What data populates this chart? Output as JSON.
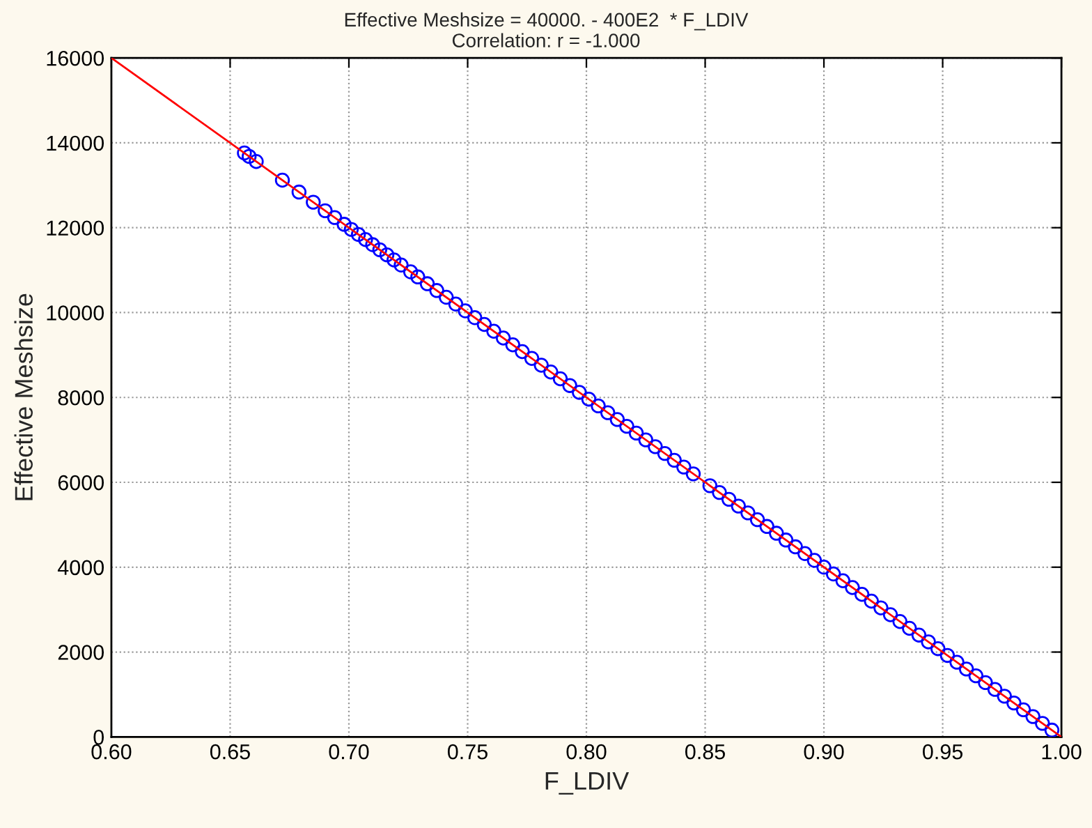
{
  "chart_data": {
    "type": "scatter",
    "title": "Effective Meshsize = 40000. - 400E2  * F_LDIV",
    "subtitle": "Correlation: r = -1.000",
    "xlabel": "F_LDIV",
    "ylabel": "Effective Meshsize",
    "xlim": [
      0.6,
      1.0
    ],
    "ylim": [
      0,
      16000
    ],
    "xticks": [
      {
        "value": 0.6,
        "label": "0.60"
      },
      {
        "value": 0.65,
        "label": "0.65"
      },
      {
        "value": 0.7,
        "label": "0.70"
      },
      {
        "value": 0.75,
        "label": "0.75"
      },
      {
        "value": 0.8,
        "label": "0.80"
      },
      {
        "value": 0.85,
        "label": "0.85"
      },
      {
        "value": 0.9,
        "label": "0.90"
      },
      {
        "value": 0.95,
        "label": "0.95"
      },
      {
        "value": 1.0,
        "label": "1.00"
      }
    ],
    "yticks": [
      0,
      2000,
      4000,
      6000,
      8000,
      10000,
      12000,
      14000,
      16000
    ],
    "grid": true,
    "series": [
      {
        "color": "#0000ff",
        "marker": "circle",
        "x": [
          0.656,
          0.658,
          0.661,
          0.672,
          0.679,
          0.685,
          0.69,
          0.694,
          0.698,
          0.701,
          0.704,
          0.707,
          0.71,
          0.713,
          0.716,
          0.719,
          0.722,
          0.726,
          0.729,
          0.733,
          0.737,
          0.741,
          0.745,
          0.749,
          0.753,
          0.757,
          0.761,
          0.765,
          0.769,
          0.773,
          0.777,
          0.781,
          0.785,
          0.789,
          0.793,
          0.797,
          0.801,
          0.805,
          0.809,
          0.813,
          0.817,
          0.821,
          0.825,
          0.829,
          0.833,
          0.837,
          0.841,
          0.845,
          0.852,
          0.856,
          0.86,
          0.864,
          0.868,
          0.872,
          0.876,
          0.88,
          0.884,
          0.888,
          0.892,
          0.896,
          0.9,
          0.904,
          0.908,
          0.912,
          0.916,
          0.92,
          0.924,
          0.928,
          0.932,
          0.936,
          0.94,
          0.944,
          0.948,
          0.952,
          0.956,
          0.96,
          0.964,
          0.968,
          0.972,
          0.976,
          0.98,
          0.984,
          0.988,
          0.992,
          0.996
        ],
        "values": [
          13760,
          13680,
          13560,
          13120,
          12840,
          12600,
          12400,
          12240,
          12080,
          11960,
          11840,
          11720,
          11600,
          11480,
          11360,
          11240,
          11120,
          10960,
          10840,
          10680,
          10520,
          10360,
          10200,
          10040,
          9880,
          9720,
          9560,
          9400,
          9240,
          9080,
          8920,
          8760,
          8600,
          8440,
          8280,
          8120,
          7960,
          7800,
          7640,
          7480,
          7320,
          7160,
          7000,
          6840,
          6680,
          6520,
          6360,
          6200,
          5920,
          5760,
          5600,
          5440,
          5280,
          5120,
          4960,
          4800,
          4640,
          4480,
          4320,
          4160,
          4000,
          3840,
          3680,
          3520,
          3360,
          3200,
          3040,
          2880,
          2720,
          2560,
          2400,
          2240,
          2080,
          1920,
          1760,
          1600,
          1440,
          1280,
          1120,
          960,
          800,
          640,
          480,
          320,
          160
        ]
      },
      {
        "type": "line",
        "marker": "none",
        "color": "#ff0000",
        "x": [
          0.6,
          1.0
        ],
        "values": [
          16000,
          0
        ]
      }
    ]
  }
}
